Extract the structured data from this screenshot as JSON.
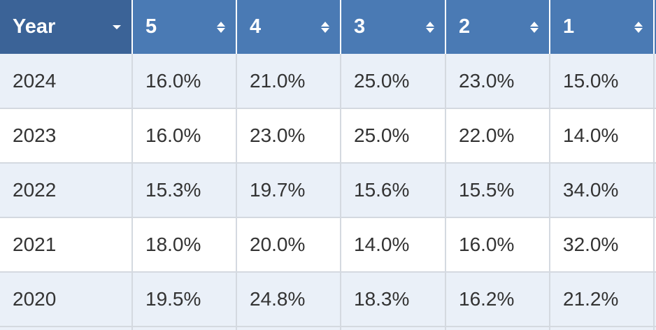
{
  "table": {
    "header": [
      "Year",
      "5",
      "4",
      "3",
      "2",
      "1"
    ],
    "rows": [
      [
        "2024",
        "16.0%",
        "21.0%",
        "25.0%",
        "23.0%",
        "15.0%"
      ],
      [
        "2023",
        "16.0%",
        "23.0%",
        "25.0%",
        "22.0%",
        "14.0%"
      ],
      [
        "2022",
        "15.3%",
        "19.7%",
        "15.6%",
        "15.5%",
        "34.0%"
      ],
      [
        "2021",
        "18.0%",
        "20.0%",
        "14.0%",
        "16.0%",
        "32.0%"
      ],
      [
        "2020",
        "19.5%",
        "24.8%",
        "18.3%",
        "16.2%",
        "21.2%"
      ]
    ]
  }
}
